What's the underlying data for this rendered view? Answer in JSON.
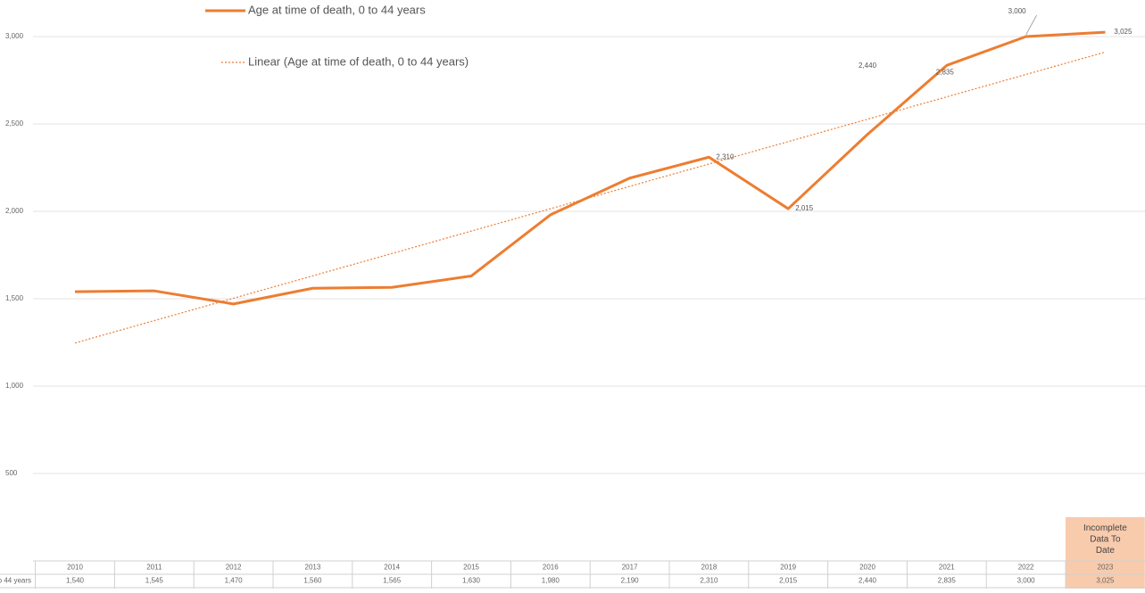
{
  "chart_data": {
    "type": "line",
    "categories": [
      "2010",
      "2011",
      "2012",
      "2013",
      "2014",
      "2015",
      "2016",
      "2017",
      "2018",
      "2019",
      "2020",
      "2021",
      "2022",
      "2023"
    ],
    "series": [
      {
        "name": "Age at time of death, 0 to 44 years",
        "color": "#ed7d31",
        "values": [
          1540,
          1545,
          1470,
          1560,
          1565,
          1630,
          1980,
          2190,
          2310,
          2015,
          2440,
          2835,
          3000,
          3025
        ],
        "value_labels": [
          "1,540",
          "1,545",
          "1,470",
          "1,560",
          "1,565",
          "1,630",
          "1,980",
          "2,190",
          "2,310",
          "2,015",
          "2,440",
          "2,835",
          "3,000",
          "3,025"
        ]
      }
    ],
    "trendline": {
      "name": "Linear (Age at time of death, 0 to 44 years)",
      "color": "#ed7d31"
    },
    "ylim": [
      0,
      3000
    ],
    "yticks": [
      {
        "value": 500,
        "label": "500"
      },
      {
        "value": 1000,
        "label": "1,000"
      },
      {
        "value": 1500,
        "label": "1,500"
      },
      {
        "value": 2000,
        "label": "2,000"
      },
      {
        "value": 2500,
        "label": "2,500"
      },
      {
        "value": 3000,
        "label": "3,000"
      }
    ],
    "grid": true,
    "annotation": "Incomplete Data To Date"
  }
}
